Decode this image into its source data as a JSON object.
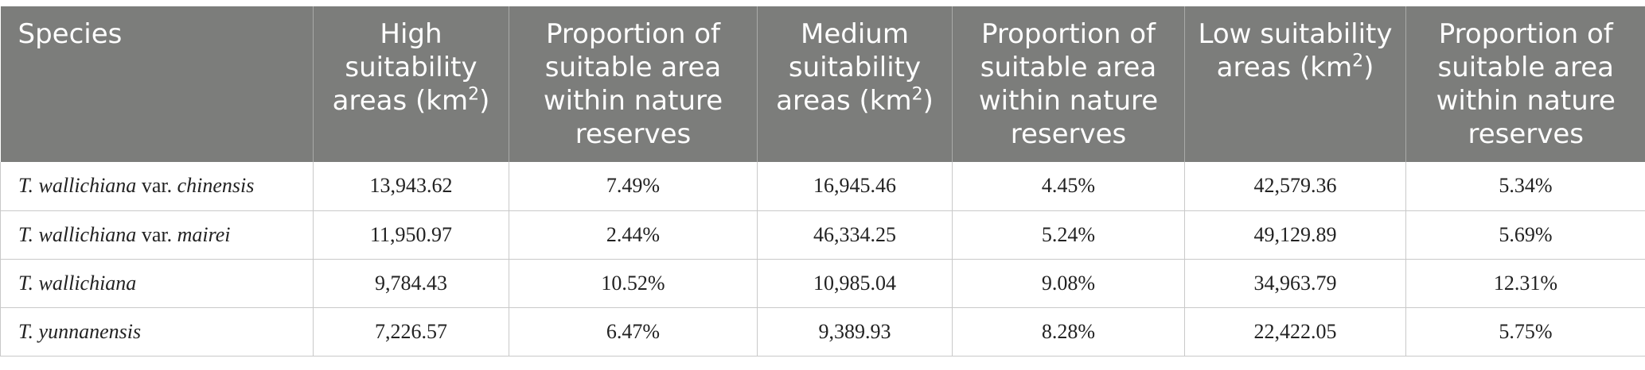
{
  "table": {
    "headers": {
      "species": "Species",
      "high_area_a": "High suitability areas (km",
      "high_area_sup": "2",
      "high_area_b": ")",
      "prop1": "Proportion of suitable area within nature reserves",
      "medium_area_a": "Medium suitability areas (km",
      "medium_area_sup": "2",
      "medium_area_b": ")",
      "prop2": "Proportion of suitable area within nature reserves",
      "low_area_a": "Low suitability areas (km",
      "low_area_sup": "2",
      "low_area_b": ")",
      "prop3": "Proportion of suitable area within nature reserves"
    },
    "rows": [
      {
        "species_italic": "T. wallichiana",
        "species_var": " var. ",
        "species_var_name": "chinensis",
        "high": "13,943.62",
        "prop_high": "7.49%",
        "medium": "16,945.46",
        "prop_medium": "4.45%",
        "low": "42,579.36",
        "prop_low": "5.34%"
      },
      {
        "species_italic": "T. wallichiana",
        "species_var": " var. ",
        "species_var_name": "mairei",
        "high": "11,950.97",
        "prop_high": "2.44%",
        "medium": "46,334.25",
        "prop_medium": "5.24%",
        "low": "49,129.89",
        "prop_low": "5.69%"
      },
      {
        "species_italic": "T. wallichiana",
        "high": "9,784.43",
        "prop_high": "10.52%",
        "medium": "10,985.04",
        "prop_medium": "9.08%",
        "low": "34,963.79",
        "prop_low": "12.31%"
      },
      {
        "species_italic": "T. yunnanensis",
        "high": "7,226.57",
        "prop_high": "6.47%",
        "medium": "9,389.93",
        "prop_medium": "8.28%",
        "low": "22,422.05",
        "prop_low": "5.75%"
      }
    ]
  }
}
